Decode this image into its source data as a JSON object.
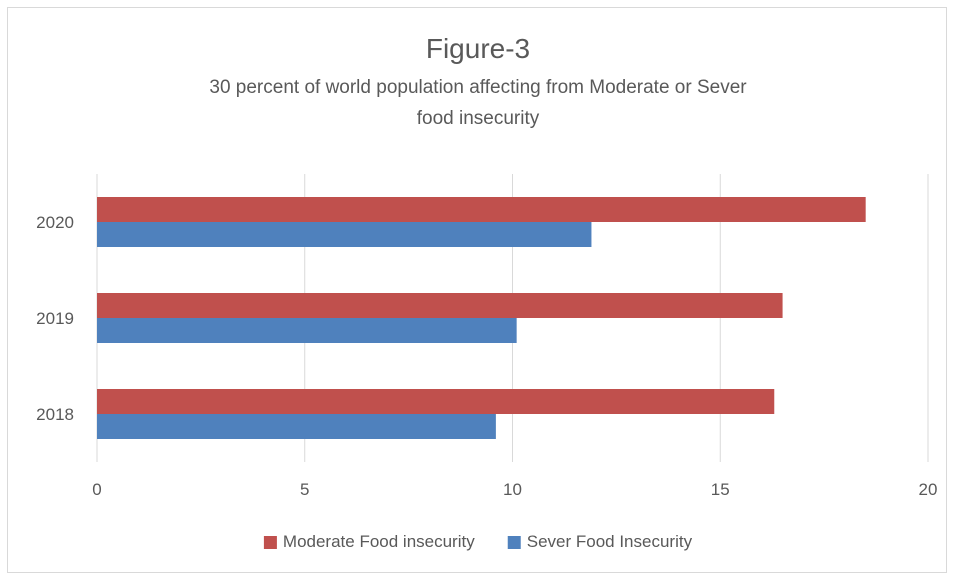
{
  "chart_data": {
    "type": "bar",
    "orientation": "horizontal",
    "title": "Figure-3",
    "subtitle_lines": [
      "30 percent of world population affecting from Moderate or Sever",
      "food insecurity"
    ],
    "categories": [
      "2018",
      "2019",
      "2020"
    ],
    "series": [
      {
        "name": "Moderate Food insecurity",
        "color": "#c0504d",
        "values": [
          16.3,
          16.5,
          18.5
        ]
      },
      {
        "name": "Sever Food Insecurity",
        "color": "#4f81bd",
        "values": [
          9.6,
          10.1,
          11.9
        ]
      }
    ],
    "xlim": [
      0,
      20
    ],
    "xticks": [
      0,
      5,
      10,
      15,
      20
    ],
    "grid": true,
    "legend_position": "bottom"
  }
}
